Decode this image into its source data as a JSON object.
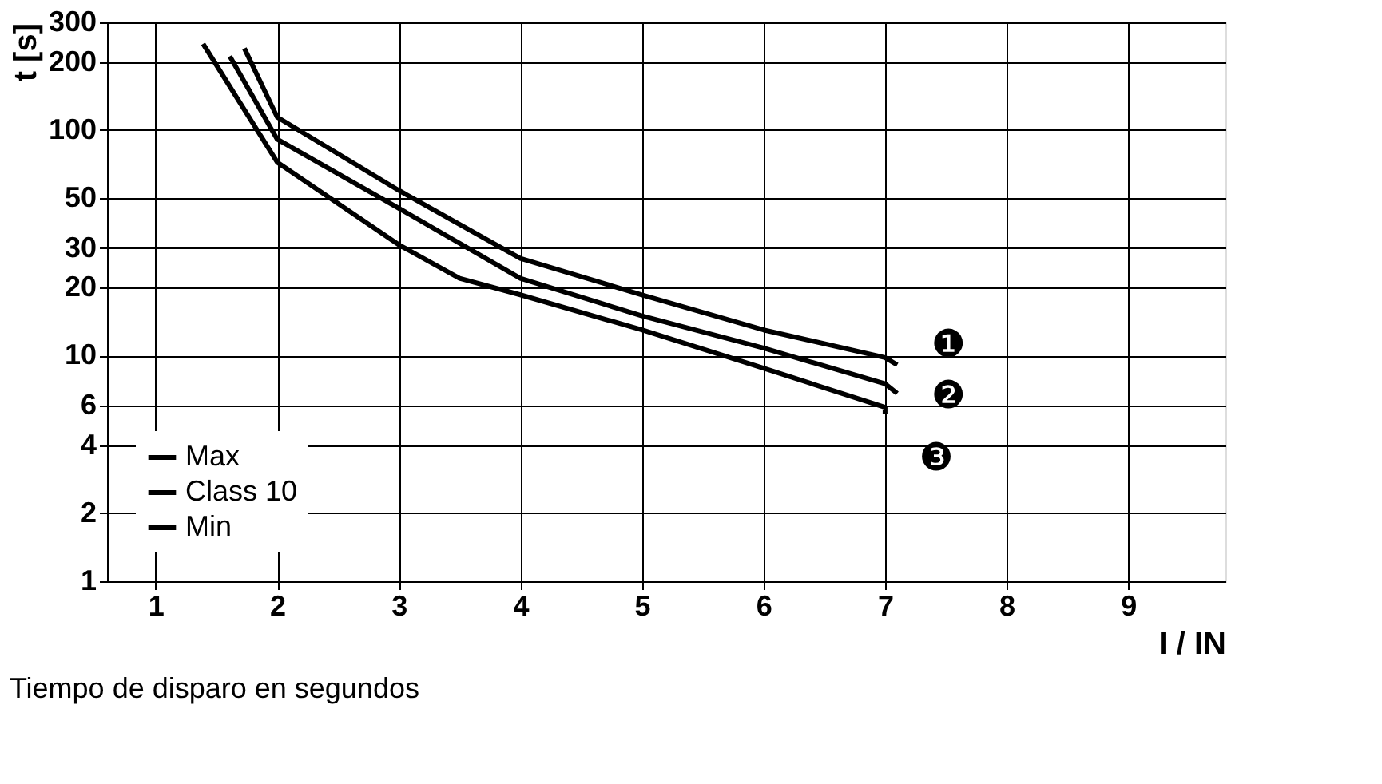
{
  "chart_data": {
    "type": "line",
    "xlabel": "I / IN",
    "ylabel": "t [s]",
    "xlim": [
      0.6,
      9.8
    ],
    "xticks": [
      1,
      2,
      3,
      4,
      5,
      6,
      7,
      8,
      9
    ],
    "ylim": [
      1,
      300
    ],
    "yticks": [
      1,
      2,
      4,
      6,
      10,
      20,
      30,
      50,
      100,
      200,
      300
    ],
    "log": "y",
    "grid": true,
    "legend": "bottom left",
    "line_style": "solid",
    "marker": "none",
    "series": [
      {
        "name": "Max",
        "color": "#000000",
        "x": [
          1.73,
          2,
          3,
          4,
          5,
          6,
          7,
          7.1
        ],
        "values": [
          230,
          114,
          54,
          27,
          18.6,
          13,
          9.8,
          9.1
        ]
      },
      {
        "name": "Class 10",
        "color": "#000000",
        "x": [
          1.61,
          2,
          3,
          4,
          5,
          6,
          7,
          7.1
        ],
        "values": [
          212,
          91,
          45,
          22,
          15,
          10.8,
          7.5,
          6.8
        ]
      },
      {
        "name": "Min",
        "color": "#000000",
        "x": [
          1.39,
          2,
          3,
          3.5,
          4,
          5,
          6,
          7,
          7.0
        ],
        "values": [
          241,
          72,
          31,
          22,
          18.6,
          13,
          8.8,
          5.9,
          5.5
        ]
      }
    ],
    "annotations": [
      "❶",
      "❷",
      "❸",
      "Tiempo de disparo en segundos"
    ]
  }
}
